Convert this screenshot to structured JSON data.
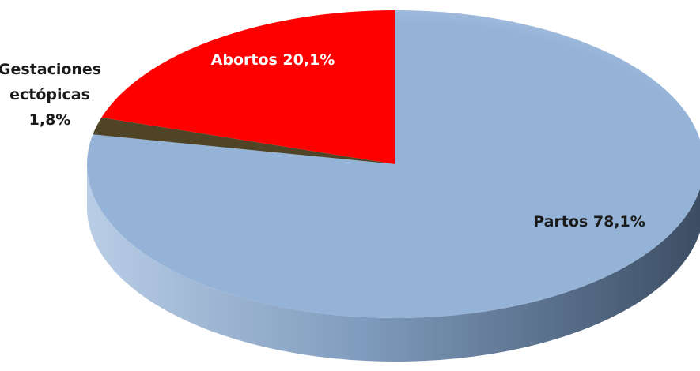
{
  "chart_data": {
    "type": "pie",
    "style": "3d",
    "slices": [
      {
        "label": "Partos 78,1%",
        "category": "Partos",
        "value": 78.1,
        "color": "#95b3d7"
      },
      {
        "label": "Abortos 20,1%",
        "category": "Abortos",
        "value": 20.1,
        "color": "#ff0000"
      },
      {
        "label": "Gestaciones ectópicas 1,8%",
        "category": "Gestaciones ectópicas",
        "value": 1.8,
        "color": "#4f4526"
      }
    ],
    "label_lines": {
      "partos": "Partos 78,1%",
      "abortos": "Abortos 20,1%",
      "ectopicas_line1": "Gestaciones",
      "ectopicas_line2": "ectópicas",
      "ectopicas_line3": "1,8%"
    },
    "side_colors": {
      "base": "#7f9bbd",
      "dark": "#3b4d63",
      "light": "#b9cde6"
    }
  }
}
